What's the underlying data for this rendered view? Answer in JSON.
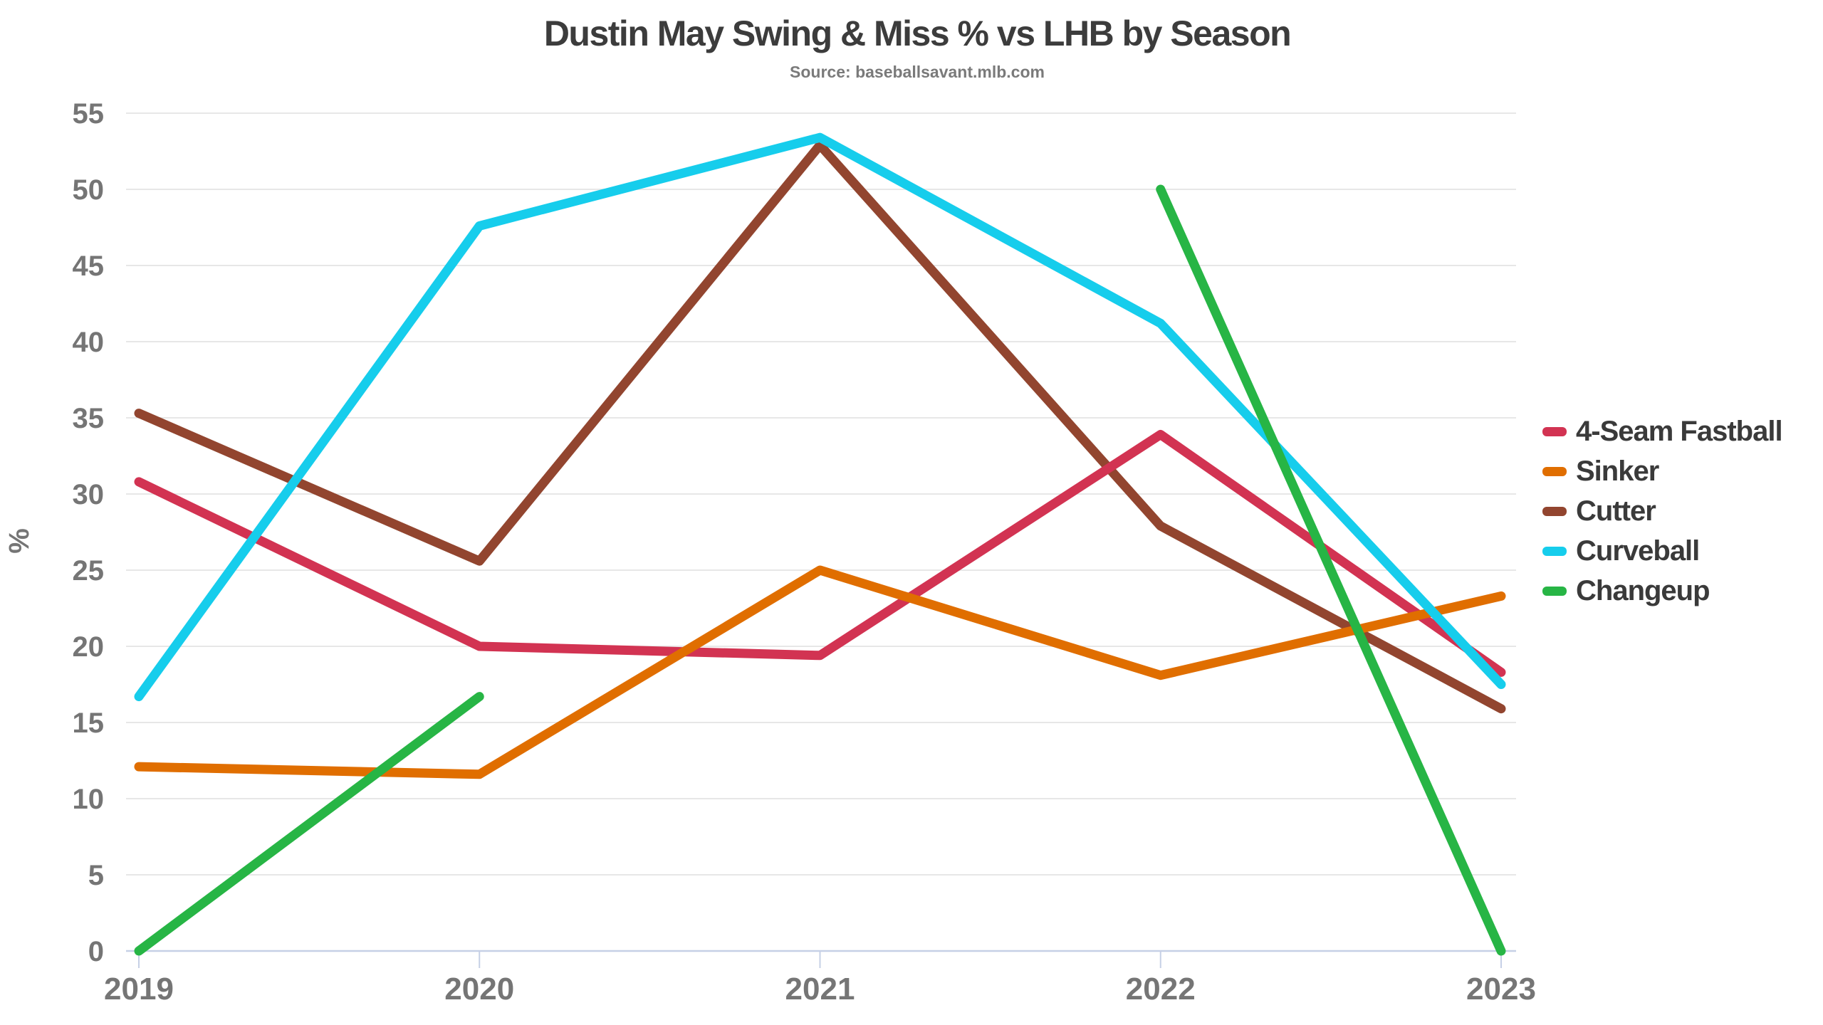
{
  "title": "Dustin May Swing & Miss % vs LHB by Season",
  "subtitle": "Source: baseballsavant.mlb.com",
  "chart_data": {
    "type": "line",
    "title": "Dustin May Swing & Miss % vs LHB by Season",
    "subtitle": "Source: baseballsavant.mlb.com",
    "xlabel": "",
    "ylabel": "%",
    "categories": [
      "2019",
      "2020",
      "2021",
      "2022",
      "2023"
    ],
    "ylim": [
      0,
      55
    ],
    "yticks": [
      0,
      5,
      10,
      15,
      20,
      25,
      30,
      35,
      40,
      45,
      50,
      55
    ],
    "grid": "horizontal",
    "legend_position": "right",
    "series": [
      {
        "name": "4-Seam Fastball",
        "color": "#d23352",
        "values": [
          30.8,
          20.0,
          19.4,
          33.9,
          18.3
        ]
      },
      {
        "name": "Sinker",
        "color": "#e06e00",
        "values": [
          12.1,
          11.6,
          25.0,
          18.1,
          23.3
        ]
      },
      {
        "name": "Cutter",
        "color": "#92452f",
        "values": [
          35.3,
          25.6,
          52.9,
          27.9,
          15.9
        ]
      },
      {
        "name": "Curveball",
        "color": "#16cdec",
        "values": [
          16.7,
          47.6,
          53.4,
          41.2,
          17.5
        ]
      },
      {
        "name": "Changeup",
        "color": "#27b545",
        "values": [
          0.0,
          16.7,
          null,
          50.0,
          0.0
        ]
      }
    ],
    "draw_order": [
      "Cutter",
      "4-Seam Fastball",
      "Sinker",
      "Curveball",
      "Changeup"
    ],
    "colors": {
      "grid": "#e7e7e7",
      "axis_line": "#c6d0e6",
      "tick_text": "#757575",
      "title_text": "#3c3c3c",
      "subtitle_text": "#7a7a7a",
      "legend_text": "#3a3a3a"
    }
  }
}
